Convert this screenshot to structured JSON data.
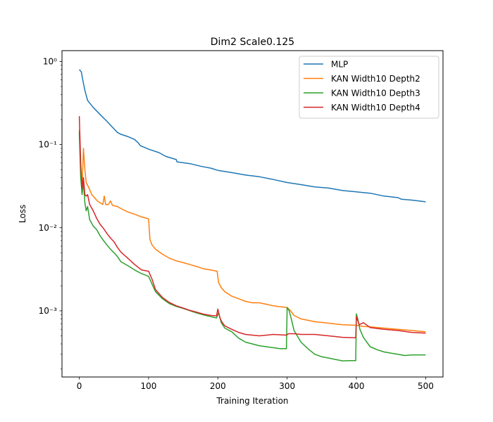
{
  "chart_data": {
    "type": "line",
    "title": "Dim2 Scale0.125",
    "xlabel": "Training Iteration",
    "ylabel": "Loss",
    "xlim": [
      -25,
      525
    ],
    "ylim": [
      0.00016,
      1.35
    ],
    "yscale": "log",
    "xticks": [
      0,
      100,
      200,
      300,
      400,
      500
    ],
    "xtick_labels": [
      "0",
      "100",
      "200",
      "300",
      "400",
      "500"
    ],
    "yticks": [
      0.001,
      0.01,
      0.1,
      1
    ],
    "ytick_labels": [
      "10⁻³",
      "10⁻²",
      "10⁻¹",
      "10⁰"
    ],
    "legend_position": "top-right",
    "series": [
      {
        "name": "MLP",
        "color": "#1f77b4",
        "points": [
          [
            0,
            0.8
          ],
          [
            3,
            0.75
          ],
          [
            5,
            0.6
          ],
          [
            8,
            0.45
          ],
          [
            12,
            0.34
          ],
          [
            20,
            0.28
          ],
          [
            30,
            0.23
          ],
          [
            40,
            0.19
          ],
          [
            50,
            0.155
          ],
          [
            55,
            0.14
          ],
          [
            60,
            0.133
          ],
          [
            70,
            0.125
          ],
          [
            80,
            0.115
          ],
          [
            85,
            0.105
          ],
          [
            88,
            0.097
          ],
          [
            100,
            0.088
          ],
          [
            115,
            0.08
          ],
          [
            125,
            0.072
          ],
          [
            140,
            0.066
          ],
          [
            141,
            0.062
          ],
          [
            160,
            0.059
          ],
          [
            175,
            0.055
          ],
          [
            190,
            0.052
          ],
          [
            200,
            0.049
          ],
          [
            220,
            0.046
          ],
          [
            240,
            0.043
          ],
          [
            260,
            0.041
          ],
          [
            280,
            0.038
          ],
          [
            300,
            0.035
          ],
          [
            320,
            0.033
          ],
          [
            340,
            0.031
          ],
          [
            360,
            0.03
          ],
          [
            380,
            0.028
          ],
          [
            400,
            0.027
          ],
          [
            420,
            0.026
          ],
          [
            440,
            0.024
          ],
          [
            460,
            0.023
          ],
          [
            465,
            0.022
          ],
          [
            480,
            0.0215
          ],
          [
            500,
            0.0205
          ]
        ]
      },
      {
        "name": "KAN Width10 Depth2",
        "color": "#ff7f0e",
        "points": [
          [
            0,
            0.15
          ],
          [
            2,
            0.045
          ],
          [
            4,
            0.03
          ],
          [
            6,
            0.09
          ],
          [
            8,
            0.05
          ],
          [
            10,
            0.035
          ],
          [
            14,
            0.03
          ],
          [
            18,
            0.025
          ],
          [
            22,
            0.023
          ],
          [
            26,
            0.021
          ],
          [
            30,
            0.02
          ],
          [
            34,
            0.019
          ],
          [
            36,
            0.024
          ],
          [
            38,
            0.019
          ],
          [
            42,
            0.019
          ],
          [
            45,
            0.021
          ],
          [
            48,
            0.0185
          ],
          [
            55,
            0.018
          ],
          [
            60,
            0.017
          ],
          [
            70,
            0.0155
          ],
          [
            80,
            0.0145
          ],
          [
            90,
            0.0135
          ],
          [
            100,
            0.0128
          ],
          [
            102,
            0.0072
          ],
          [
            105,
            0.0062
          ],
          [
            110,
            0.0055
          ],
          [
            120,
            0.0048
          ],
          [
            130,
            0.0043
          ],
          [
            140,
            0.004
          ],
          [
            150,
            0.0038
          ],
          [
            160,
            0.0036
          ],
          [
            170,
            0.0034
          ],
          [
            180,
            0.0032
          ],
          [
            190,
            0.0031
          ],
          [
            199,
            0.003
          ],
          [
            201,
            0.0022
          ],
          [
            205,
            0.0019
          ],
          [
            210,
            0.0017
          ],
          [
            220,
            0.0015
          ],
          [
            230,
            0.0014
          ],
          [
            240,
            0.0013
          ],
          [
            250,
            0.00125
          ],
          [
            260,
            0.00125
          ],
          [
            270,
            0.0012
          ],
          [
            280,
            0.00115
          ],
          [
            290,
            0.00112
          ],
          [
            300,
            0.0011
          ],
          [
            305,
            0.001
          ],
          [
            310,
            0.00088
          ],
          [
            320,
            0.0008
          ],
          [
            340,
            0.00074
          ],
          [
            360,
            0.00071
          ],
          [
            380,
            0.00068
          ],
          [
            400,
            0.00067
          ],
          [
            410,
            0.00065
          ],
          [
            420,
            0.00064
          ],
          [
            440,
            0.00062
          ],
          [
            460,
            0.0006
          ],
          [
            480,
            0.00058
          ],
          [
            500,
            0.00056
          ]
        ]
      },
      {
        "name": "KAN Width10 Depth3",
        "color": "#2ca02c",
        "points": [
          [
            0,
            0.14
          ],
          [
            2,
            0.04
          ],
          [
            4,
            0.025
          ],
          [
            6,
            0.035
          ],
          [
            8,
            0.02
          ],
          [
            10,
            0.016
          ],
          [
            12,
            0.018
          ],
          [
            15,
            0.0125
          ],
          [
            20,
            0.0105
          ],
          [
            25,
            0.0095
          ],
          [
            30,
            0.008
          ],
          [
            35,
            0.007
          ],
          [
            40,
            0.0062
          ],
          [
            45,
            0.0055
          ],
          [
            50,
            0.005
          ],
          [
            55,
            0.0045
          ],
          [
            60,
            0.0039
          ],
          [
            70,
            0.0035
          ],
          [
            80,
            0.0031
          ],
          [
            90,
            0.0028
          ],
          [
            100,
            0.0026
          ],
          [
            105,
            0.0021
          ],
          [
            110,
            0.0017
          ],
          [
            120,
            0.0014
          ],
          [
            130,
            0.00122
          ],
          [
            140,
            0.00113
          ],
          [
            150,
            0.00107
          ],
          [
            160,
            0.001
          ],
          [
            170,
            0.00094
          ],
          [
            180,
            0.00089
          ],
          [
            190,
            0.00085
          ],
          [
            198,
            0.00082
          ],
          [
            201,
            0.00095
          ],
          [
            205,
            0.00072
          ],
          [
            210,
            0.00062
          ],
          [
            220,
            0.00056
          ],
          [
            230,
            0.00047
          ],
          [
            240,
            0.00042
          ],
          [
            250,
            0.0004
          ],
          [
            260,
            0.00038
          ],
          [
            270,
            0.00037
          ],
          [
            280,
            0.00036
          ],
          [
            290,
            0.00035
          ],
          [
            299,
            0.00035
          ],
          [
            300,
            0.0011
          ],
          [
            303,
            0.001
          ],
          [
            306,
            0.0008
          ],
          [
            310,
            0.00058
          ],
          [
            320,
            0.00042
          ],
          [
            330,
            0.00035
          ],
          [
            340,
            0.0003
          ],
          [
            350,
            0.00028
          ],
          [
            360,
            0.00027
          ],
          [
            370,
            0.00026
          ],
          [
            380,
            0.00025
          ],
          [
            390,
            0.000252
          ],
          [
            399,
            0.000252
          ],
          [
            400,
            0.00092
          ],
          [
            402,
            0.0008
          ],
          [
            405,
            0.0006
          ],
          [
            410,
            0.00048
          ],
          [
            415,
            0.00042
          ],
          [
            420,
            0.00037
          ],
          [
            430,
            0.00034
          ],
          [
            440,
            0.00032
          ],
          [
            450,
            0.00031
          ],
          [
            460,
            0.0003
          ],
          [
            470,
            0.00029
          ],
          [
            480,
            0.000295
          ],
          [
            490,
            0.000295
          ],
          [
            500,
            0.000295
          ]
        ]
      },
      {
        "name": "KAN Width10 Depth4",
        "color": "#d62728",
        "points": [
          [
            0,
            0.22
          ],
          [
            2,
            0.06
          ],
          [
            4,
            0.03
          ],
          [
            6,
            0.04
          ],
          [
            8,
            0.025
          ],
          [
            10,
            0.024
          ],
          [
            12,
            0.025
          ],
          [
            15,
            0.019
          ],
          [
            20,
            0.016
          ],
          [
            25,
            0.013
          ],
          [
            30,
            0.011
          ],
          [
            35,
            0.0098
          ],
          [
            40,
            0.0085
          ],
          [
            45,
            0.0075
          ],
          [
            50,
            0.0068
          ],
          [
            55,
            0.0058
          ],
          [
            60,
            0.0051
          ],
          [
            70,
            0.0043
          ],
          [
            80,
            0.0036
          ],
          [
            90,
            0.0031
          ],
          [
            100,
            0.003
          ],
          [
            105,
            0.0024
          ],
          [
            110,
            0.0018
          ],
          [
            120,
            0.00145
          ],
          [
            130,
            0.00126
          ],
          [
            140,
            0.00115
          ],
          [
            150,
            0.00108
          ],
          [
            160,
            0.00101
          ],
          [
            170,
            0.00096
          ],
          [
            180,
            0.00091
          ],
          [
            190,
            0.00088
          ],
          [
            198,
            0.00087
          ],
          [
            200,
            0.00105
          ],
          [
            203,
            0.00082
          ],
          [
            206,
            0.00073
          ],
          [
            210,
            0.00066
          ],
          [
            220,
            0.0006
          ],
          [
            230,
            0.00055
          ],
          [
            240,
            0.00052
          ],
          [
            260,
            0.0005
          ],
          [
            280,
            0.00052
          ],
          [
            299,
            0.00051
          ],
          [
            302,
            0.00053
          ],
          [
            310,
            0.00053
          ],
          [
            320,
            0.00052
          ],
          [
            340,
            0.00052
          ],
          [
            360,
            0.0005
          ],
          [
            380,
            0.00048
          ],
          [
            399,
            0.000475
          ],
          [
            400,
            0.00085
          ],
          [
            404,
            0.00068
          ],
          [
            410,
            0.00072
          ],
          [
            420,
            0.00063
          ],
          [
            440,
            0.0006
          ],
          [
            460,
            0.00058
          ],
          [
            480,
            0.00055
          ],
          [
            500,
            0.00054
          ]
        ]
      }
    ]
  }
}
